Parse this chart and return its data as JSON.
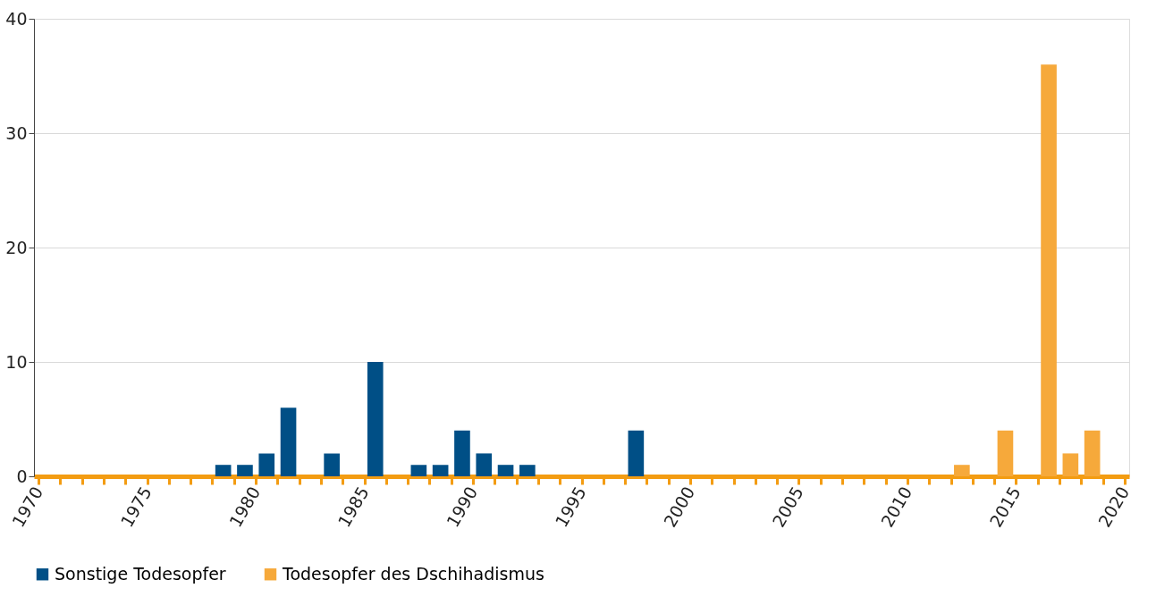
{
  "chart_data": {
    "type": "bar",
    "xlim": [
      1970,
      2020
    ],
    "ylim": [
      0,
      40
    ],
    "yticks": [
      0,
      10,
      20,
      30,
      40
    ],
    "xticks": [
      1970,
      {
        "value": 1971,
        "label": null
      },
      {
        "value": 1972,
        "label": null
      },
      {
        "value": 1973,
        "label": null
      },
      {
        "value": 1974,
        "label": null
      },
      1975,
      {
        "value": 1976,
        "label": null
      },
      {
        "value": 1977,
        "label": null
      },
      {
        "value": 1978,
        "label": null
      },
      {
        "value": 1979,
        "label": null
      },
      1980,
      {
        "value": 1981,
        "label": null
      },
      {
        "value": 1982,
        "label": null
      },
      {
        "value": 1983,
        "label": null
      },
      {
        "value": 1984,
        "label": null
      },
      1985,
      {
        "value": 1986,
        "label": null
      },
      {
        "value": 1987,
        "label": null
      },
      {
        "value": 1988,
        "label": null
      },
      {
        "value": 1989,
        "label": null
      },
      1990,
      {
        "value": 1991,
        "label": null
      },
      {
        "value": 1992,
        "label": null
      },
      {
        "value": 1993,
        "label": null
      },
      {
        "value": 1994,
        "label": null
      },
      1995,
      {
        "value": 1996,
        "label": null
      },
      {
        "value": 1997,
        "label": null
      },
      {
        "value": 1998,
        "label": null
      },
      {
        "value": 1999,
        "label": null
      },
      2000,
      {
        "value": 2001,
        "label": null
      },
      {
        "value": 2002,
        "label": null
      },
      {
        "value": 2003,
        "label": null
      },
      {
        "value": 2004,
        "label": null
      },
      2005,
      {
        "value": 2006,
        "label": null
      },
      {
        "value": 2007,
        "label": null
      },
      {
        "value": 2008,
        "label": null
      },
      {
        "value": 2009,
        "label": null
      },
      2010,
      {
        "value": 2011,
        "label": null
      },
      {
        "value": 2012,
        "label": null
      },
      {
        "value": 2013,
        "label": null
      },
      {
        "value": 2014,
        "label": null
      },
      2015,
      {
        "value": 2016,
        "label": null
      },
      {
        "value": 2017,
        "label": null
      },
      {
        "value": 2018,
        "label": null
      },
      {
        "value": 2019,
        "label": null
      },
      2020
    ],
    "grid": "y",
    "legend": "bottom left",
    "series": [
      {
        "name": "Sonstige Todesopfer",
        "color": "#004f86",
        "x": [
          1978,
          1979,
          1980,
          1981,
          1983,
          1985,
          1987,
          1988,
          1989,
          1990,
          1991,
          1992,
          1997
        ],
        "values": [
          1,
          1,
          2,
          6,
          2,
          10,
          1,
          1,
          4,
          2,
          1,
          1,
          4
        ]
      },
      {
        "name": "Todesopfer des Dschihadismus",
        "color": "#f6a93b",
        "x": [
          2012,
          2014,
          2016,
          2017,
          2018
        ],
        "values": [
          1,
          4,
          36,
          2,
          4
        ]
      }
    ]
  }
}
